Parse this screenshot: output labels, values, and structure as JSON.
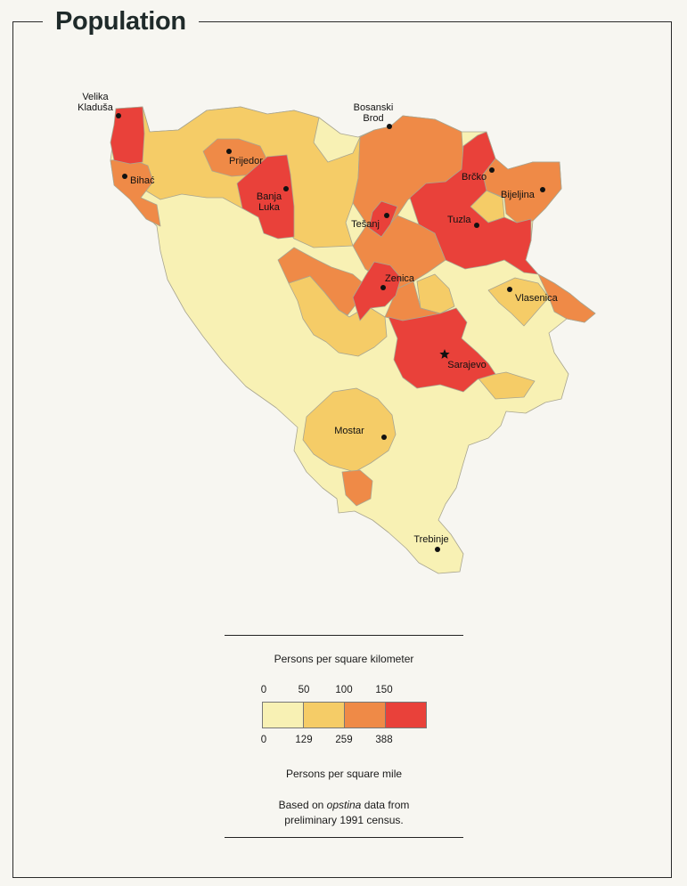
{
  "title": "Population",
  "colors": {
    "background": "#f7f6f1",
    "class1": "#f8f1b4",
    "class2": "#f5cc67",
    "class3": "#ef8a47",
    "class4": "#e9413a",
    "border": "#a8a590"
  },
  "cities": [
    {
      "id": "velika-kladusa",
      "label": [
        "Velika",
        "Kladuša"
      ],
      "symbol": "dot"
    },
    {
      "id": "bosanski-brod",
      "label": [
        "Bosanski",
        "Brod"
      ],
      "symbol": "dot"
    },
    {
      "id": "prijedor",
      "label": [
        "Prijedor"
      ],
      "symbol": "dot"
    },
    {
      "id": "bihac",
      "label": [
        "Bihać"
      ],
      "symbol": "dot"
    },
    {
      "id": "banja-luka",
      "label": [
        "Banja",
        "Luka"
      ],
      "symbol": "dot"
    },
    {
      "id": "tesanj",
      "label": [
        "Tešanj"
      ],
      "symbol": "dot"
    },
    {
      "id": "brcko",
      "label": [
        "Brčko"
      ],
      "symbol": "dot"
    },
    {
      "id": "bijeljina",
      "label": [
        "Bijeljina"
      ],
      "symbol": "dot"
    },
    {
      "id": "tuzla",
      "label": [
        "Tuzla"
      ],
      "symbol": "dot"
    },
    {
      "id": "zenica",
      "label": [
        "Zenica"
      ],
      "symbol": "dot"
    },
    {
      "id": "vlasenica",
      "label": [
        "Vlasenica"
      ],
      "symbol": "dot"
    },
    {
      "id": "sarajevo",
      "label": [
        "Sarajevo"
      ],
      "symbol": "star"
    },
    {
      "id": "mostar",
      "label": [
        "Mostar"
      ],
      "symbol": "dot"
    },
    {
      "id": "trebinje",
      "label": [
        "Trebinje"
      ],
      "symbol": "dot"
    }
  ],
  "legend": {
    "km_title": "Persons per square kilometer",
    "km_ticks": [
      "0",
      "50",
      "100",
      "150"
    ],
    "mile_ticks": [
      "0",
      "129",
      "259",
      "388"
    ],
    "mile_title": "Persons per square mile",
    "note_prefix": "Based on ",
    "note_italic": "opstina",
    "note_suffix": " data from",
    "note_line2": "preliminary 1991 census."
  }
}
